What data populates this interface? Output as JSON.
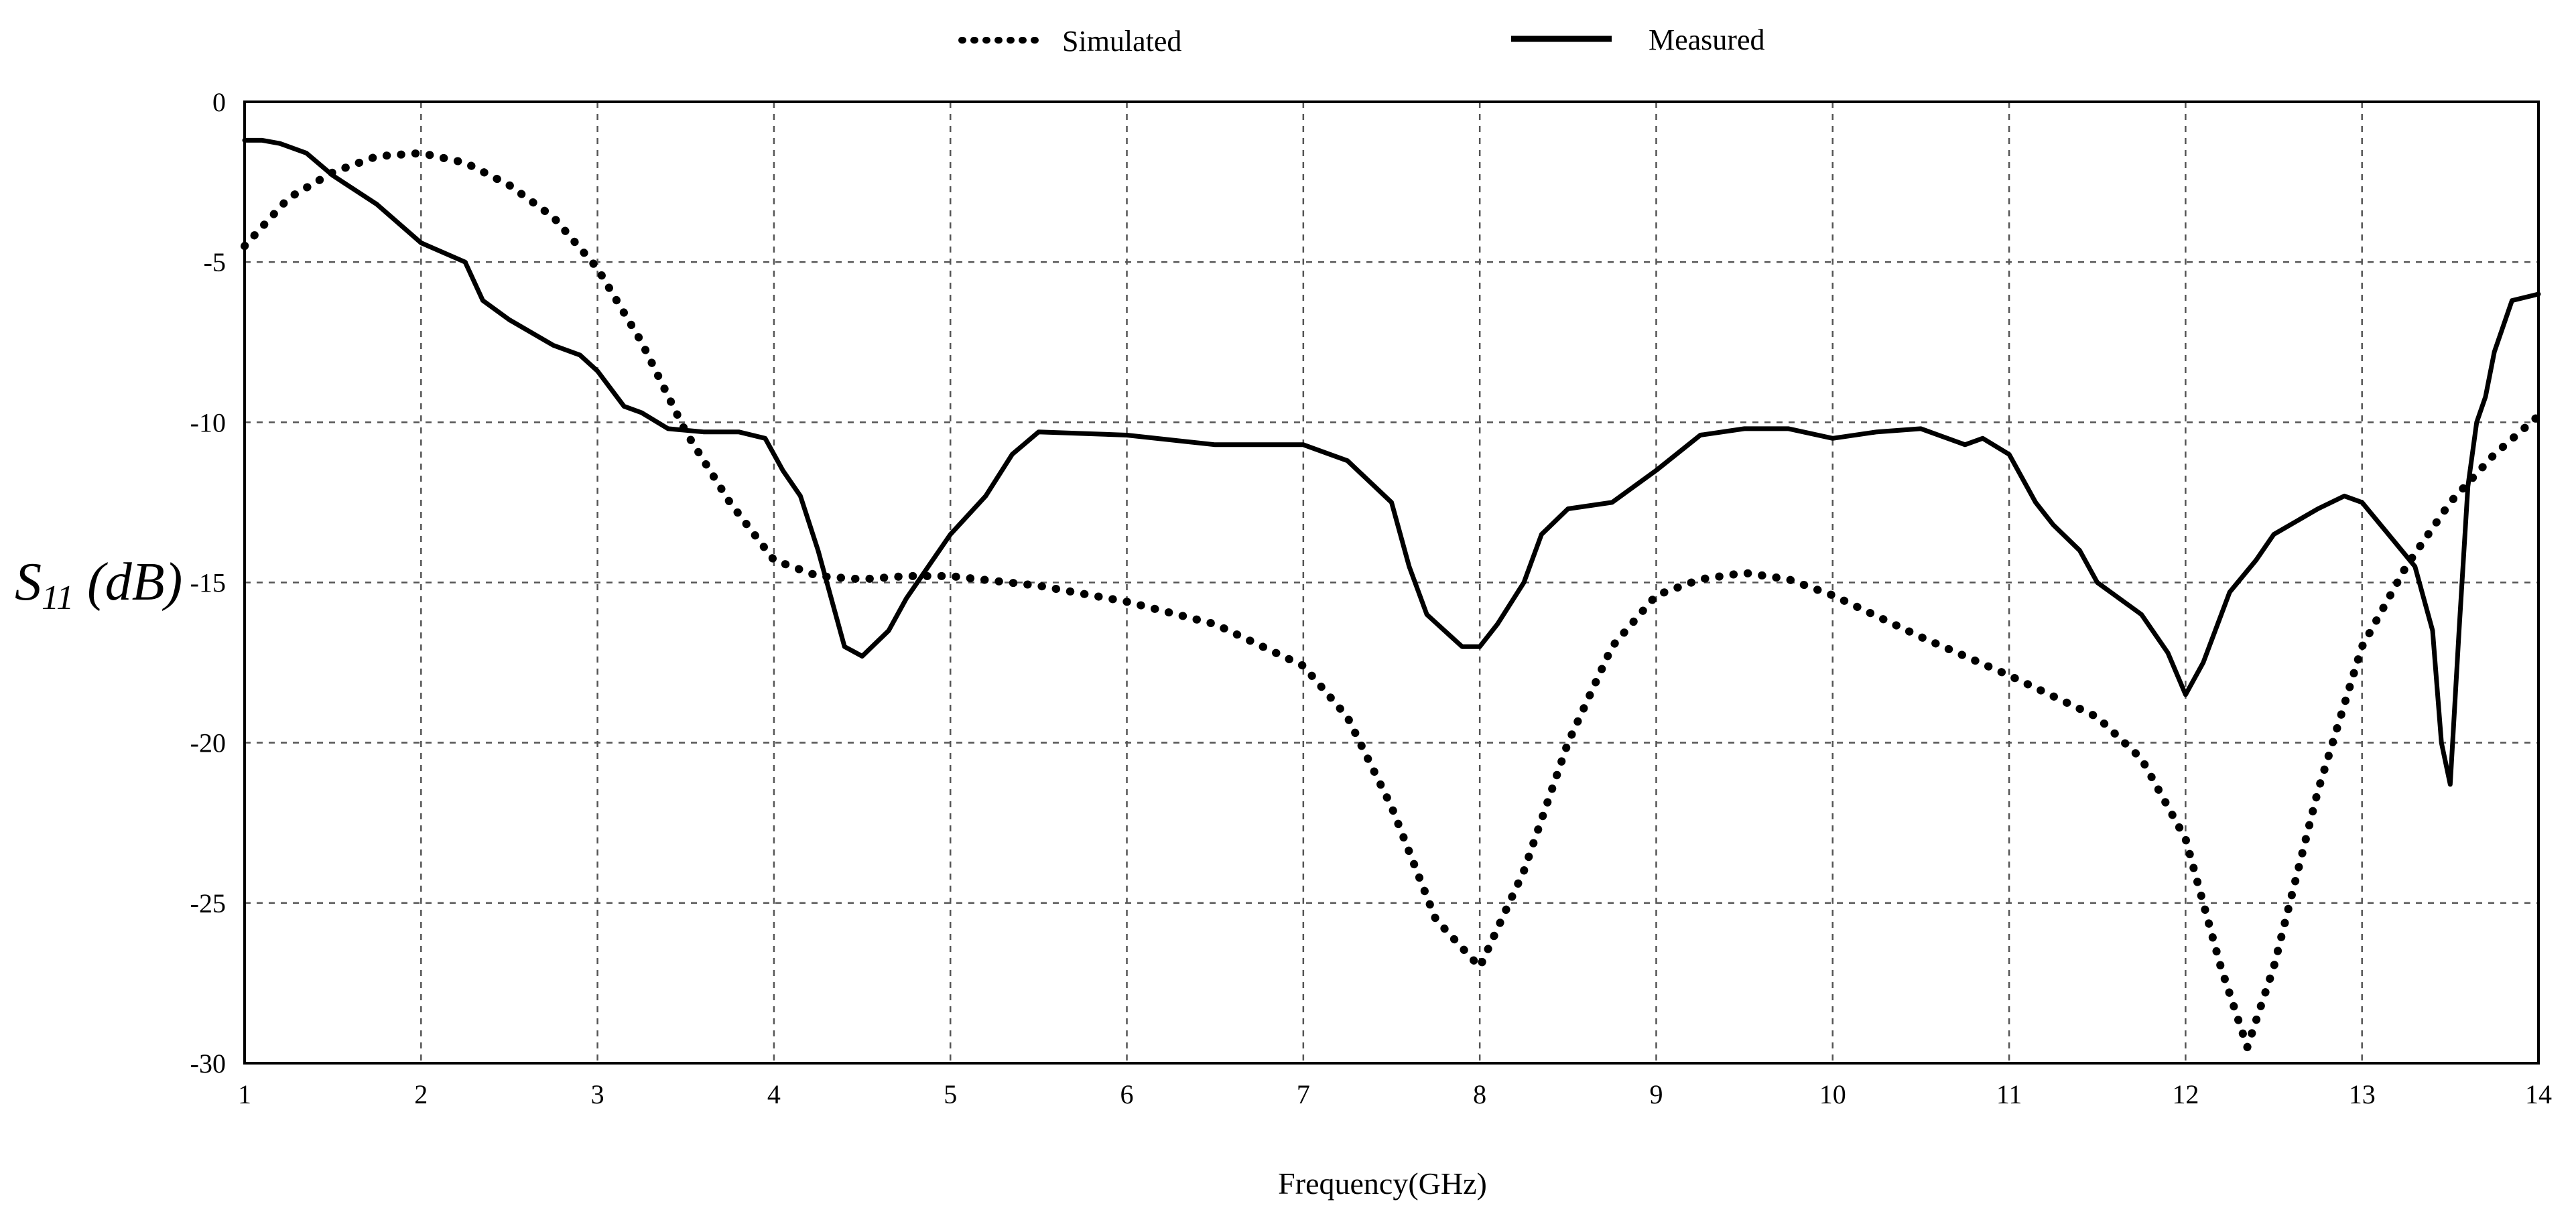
{
  "legend": {
    "simulated_label": "Simulated",
    "measured_label": "Measured"
  },
  "axes": {
    "xlabel": "Frequency(GHz)",
    "ylabel_main": "S",
    "ylabel_sub": "11",
    "ylabel_unit": " (dB)"
  },
  "chart_data": {
    "type": "line",
    "title": "",
    "xlabel": "Frequency(GHz)",
    "ylabel": "S11 (dB)",
    "xlim": [
      1,
      14
    ],
    "ylim": [
      -30,
      0
    ],
    "xticks": [
      1,
      2,
      3,
      4,
      5,
      6,
      7,
      8,
      9,
      10,
      11,
      12,
      13,
      14
    ],
    "yticks": [
      0,
      -5,
      -10,
      -15,
      -20,
      -25,
      -30
    ],
    "grid": true,
    "legend_position": "top-center",
    "series": [
      {
        "name": "Simulated",
        "style": "dotted",
        "color": "#000000",
        "x": [
          1.0,
          1.25,
          1.5,
          1.75,
          2.0,
          2.25,
          2.5,
          2.75,
          3.0,
          3.25,
          3.5,
          3.75,
          4.0,
          4.25,
          4.5,
          4.75,
          5.0,
          5.5,
          6.0,
          6.5,
          7.0,
          7.25,
          7.5,
          7.75,
          8.0,
          8.25,
          8.5,
          8.75,
          9.0,
          9.25,
          9.5,
          9.75,
          10.0,
          10.5,
          11.0,
          11.5,
          11.75,
          12.0,
          12.2,
          12.35,
          12.5,
          12.75,
          13.0,
          13.25,
          13.5,
          13.75,
          14.0
        ],
        "y": [
          -4.5,
          -3.0,
          -2.2,
          -1.7,
          -1.6,
          -1.9,
          -2.6,
          -3.6,
          -5.2,
          -7.5,
          -10.3,
          -12.5,
          -14.3,
          -14.8,
          -14.9,
          -14.8,
          -14.8,
          -15.1,
          -15.6,
          -16.3,
          -17.6,
          -19.2,
          -22.0,
          -25.5,
          -27.0,
          -24.0,
          -20.0,
          -17.0,
          -15.4,
          -14.9,
          -14.7,
          -14.9,
          -15.4,
          -16.7,
          -17.9,
          -19.2,
          -20.5,
          -23.0,
          -27.0,
          -29.5,
          -27.0,
          -21.5,
          -17.0,
          -14.5,
          -12.5,
          -11.0,
          -9.8
        ]
      },
      {
        "name": "Measured",
        "style": "solid",
        "color": "#000000",
        "x": [
          1.0,
          1.1,
          1.2,
          1.35,
          1.5,
          1.75,
          2.0,
          2.25,
          2.35,
          2.5,
          2.75,
          2.9,
          3.0,
          3.15,
          3.25,
          3.4,
          3.6,
          3.8,
          3.95,
          4.05,
          4.15,
          4.25,
          4.3,
          4.4,
          4.5,
          4.65,
          4.75,
          5.0,
          5.2,
          5.35,
          5.5,
          6.0,
          6.5,
          7.0,
          7.25,
          7.5,
          7.6,
          7.7,
          7.8,
          7.9,
          8.0,
          8.1,
          8.25,
          8.35,
          8.5,
          8.75,
          9.0,
          9.25,
          9.5,
          9.75,
          10.0,
          10.25,
          10.5,
          10.75,
          10.85,
          11.0,
          11.15,
          11.25,
          11.4,
          11.5,
          11.75,
          11.9,
          12.0,
          12.1,
          12.25,
          12.4,
          12.5,
          12.75,
          12.9,
          13.0,
          13.15,
          13.3,
          13.4,
          13.45,
          13.5,
          13.55,
          13.6,
          13.65,
          13.7,
          13.75,
          13.85,
          14.0
        ],
        "y": [
          -1.2,
          -1.2,
          -1.3,
          -1.6,
          -2.3,
          -3.2,
          -4.4,
          -5.0,
          -6.2,
          -6.8,
          -7.6,
          -7.9,
          -8.4,
          -9.5,
          -9.7,
          -10.2,
          -10.3,
          -10.3,
          -10.5,
          -11.5,
          -12.3,
          -14.0,
          -15.0,
          -17.0,
          -17.3,
          -16.5,
          -15.5,
          -13.5,
          -12.3,
          -11.0,
          -10.3,
          -10.4,
          -10.7,
          -10.7,
          -11.2,
          -12.5,
          -14.5,
          -16.0,
          -16.5,
          -17.0,
          -17.0,
          -16.3,
          -15.0,
          -13.5,
          -12.7,
          -12.5,
          -11.5,
          -10.4,
          -10.2,
          -10.2,
          -10.5,
          -10.3,
          -10.2,
          -10.7,
          -10.5,
          -11.0,
          -12.5,
          -13.2,
          -14.0,
          -15.0,
          -16.0,
          -17.2,
          -18.5,
          -17.5,
          -15.3,
          -14.3,
          -13.5,
          -12.7,
          -12.3,
          -12.5,
          -13.5,
          -14.5,
          -16.5,
          -20.0,
          -21.3,
          -16.5,
          -12.0,
          -10.0,
          -9.2,
          -7.8,
          -6.2,
          -6.0
        ]
      }
    ]
  }
}
